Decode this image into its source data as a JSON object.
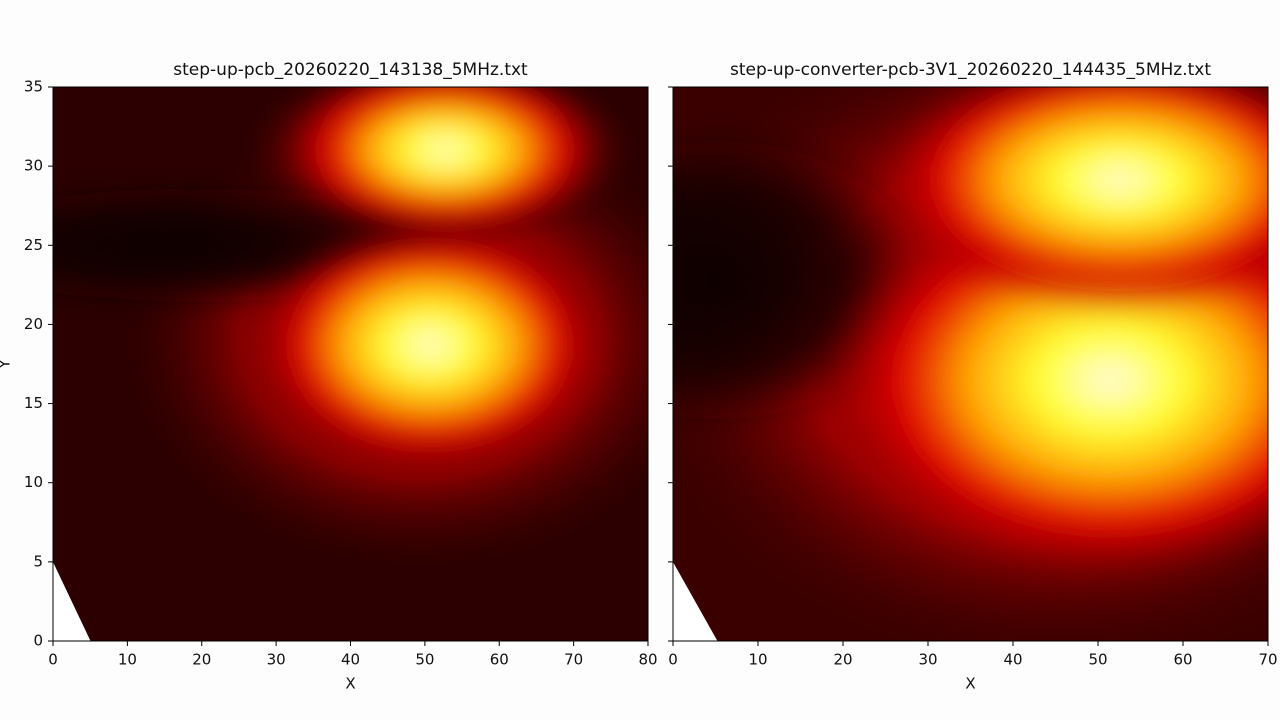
{
  "chart_data": [
    {
      "type": "heatmap",
      "title": "step-up-pcb_20260220_143138_5MHz.txt",
      "xlabel": "X",
      "ylabel": "Y",
      "xlim": [
        0,
        80
      ],
      "ylim": [
        0,
        35
      ],
      "xticks": [
        0,
        10,
        20,
        30,
        40,
        50,
        60,
        70,
        80
      ],
      "yticks": [
        0,
        5,
        10,
        15,
        20,
        25,
        30,
        35
      ]
    },
    {
      "type": "heatmap",
      "title": "step-up-converter-pcb-3V1_20260220_144435_5MHz.txt",
      "xlabel": "X",
      "xlim": [
        0,
        70
      ],
      "ylim": [
        0,
        35
      ],
      "xticks": [
        0,
        10,
        20,
        30,
        40,
        50,
        60,
        70
      ],
      "yticks": [
        0,
        5,
        10,
        15,
        20,
        25,
        30,
        35
      ]
    }
  ]
}
